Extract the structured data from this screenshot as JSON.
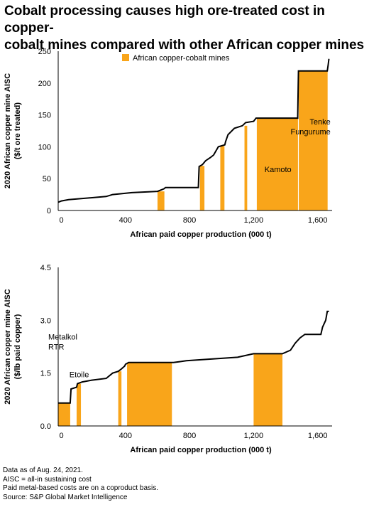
{
  "title": {
    "line1": "Cobalt processing causes high ore-treated cost in copper-",
    "line2": "cobalt mines compared with other African copper mines"
  },
  "colors": {
    "highlight": "#f9a51a",
    "curve": "#000000"
  },
  "chart_data": [
    {
      "type": "area",
      "ylabel_line1": "2020 African copper mine AISC",
      "ylabel_line2": "($/t ore treated)",
      "xlabel": "African paid copper production (000 t)",
      "xlim": [
        -20,
        1690
      ],
      "ylim": [
        0,
        250
      ],
      "xticks": [
        0,
        400,
        800,
        1200,
        1600
      ],
      "xtick_labels": [
        "0",
        "400",
        "800",
        "1,200",
        "1,600"
      ],
      "yticks": [
        0,
        50,
        100,
        150,
        200,
        250
      ],
      "ytick_labels": [
        "0",
        "50",
        "100",
        "150",
        "200",
        "250"
      ],
      "legend": {
        "label": "African copper-cobalt mines",
        "position": "top-center"
      },
      "curve": [
        [
          -20,
          13
        ],
        [
          0,
          15
        ],
        [
          45,
          17
        ],
        [
          280,
          22
        ],
        [
          320,
          25
        ],
        [
          440,
          28
        ],
        [
          600,
          30
        ],
        [
          640,
          34
        ],
        [
          650,
          36
        ],
        [
          855,
          36
        ],
        [
          860,
          69
        ],
        [
          880,
          72
        ],
        [
          900,
          78
        ],
        [
          930,
          83
        ],
        [
          950,
          87
        ],
        [
          980,
          100
        ],
        [
          1020,
          103
        ],
        [
          1025,
          108
        ],
        [
          1040,
          119
        ],
        [
          1080,
          129
        ],
        [
          1130,
          133
        ],
        [
          1150,
          138
        ],
        [
          1200,
          140
        ],
        [
          1215,
          145
        ],
        [
          1475,
          145
        ],
        [
          1480,
          219
        ],
        [
          1660,
          219
        ],
        [
          1665,
          228
        ],
        [
          1670,
          238
        ]
      ],
      "highlights": [
        {
          "x0": 600,
          "x1": 643,
          "y": 30
        },
        {
          "x0": 865,
          "x1": 893,
          "y": 70
        },
        {
          "x0": 992,
          "x1": 1018,
          "y": 101
        },
        {
          "x0": 1143,
          "x1": 1160,
          "y": 133
        },
        {
          "x0": 1220,
          "x1": 1477,
          "y": 145
        },
        {
          "x0": 1482,
          "x1": 1662,
          "y": 219
        }
      ],
      "annotations": [
        {
          "lines": [
            "Kamoto"
          ],
          "x": 1268,
          "y": 60,
          "anchor": "start"
        },
        {
          "lines": [
            "Tenke",
            "Fungurume"
          ],
          "x": 1680,
          "y": 135,
          "anchor": "end"
        }
      ]
    },
    {
      "type": "area",
      "ylabel_line1": "2020 African copper mine AISC",
      "ylabel_line2": "($/lb paid copper)",
      "xlabel": "African paid copper production (000 t)",
      "xlim": [
        -20,
        1690
      ],
      "ylim": [
        0,
        4.5
      ],
      "xticks": [
        0,
        400,
        800,
        1200,
        1600
      ],
      "xtick_labels": [
        "0",
        "400",
        "800",
        "1,200",
        "1,600"
      ],
      "yticks": [
        0,
        1.5,
        3.0,
        4.5
      ],
      "ytick_labels": [
        "0.0",
        "1.5",
        "3.0",
        "4.5"
      ],
      "curve": [
        [
          -20,
          0.65
        ],
        [
          55,
          0.65
        ],
        [
          60,
          1.05
        ],
        [
          95,
          1.1
        ],
        [
          100,
          1.2
        ],
        [
          130,
          1.25
        ],
        [
          190,
          1.3
        ],
        [
          280,
          1.35
        ],
        [
          320,
          1.5
        ],
        [
          355,
          1.55
        ],
        [
          370,
          1.6
        ],
        [
          395,
          1.7
        ],
        [
          400,
          1.75
        ],
        [
          420,
          1.8
        ],
        [
          700,
          1.8
        ],
        [
          780,
          1.85
        ],
        [
          1100,
          1.95
        ],
        [
          1200,
          2.05
        ],
        [
          1380,
          2.05
        ],
        [
          1430,
          2.15
        ],
        [
          1460,
          2.35
        ],
        [
          1490,
          2.5
        ],
        [
          1520,
          2.6
        ],
        [
          1620,
          2.6
        ],
        [
          1630,
          2.8
        ],
        [
          1650,
          3.0
        ],
        [
          1660,
          3.25
        ],
        [
          1670,
          3.25
        ]
      ],
      "highlights": [
        {
          "x0": -20,
          "x1": 55,
          "y": 0.65
        },
        {
          "x0": 95,
          "x1": 122,
          "y": 1.2
        },
        {
          "x0": 355,
          "x1": 375,
          "y": 1.55
        },
        {
          "x0": 410,
          "x1": 690,
          "y": 1.8
        },
        {
          "x0": 1200,
          "x1": 1380,
          "y": 2.05
        }
      ],
      "annotations": [
        {
          "lines": [
            "Metalkol",
            "RTR"
          ],
          "x": -60,
          "y": 2.45,
          "anchor": "start"
        },
        {
          "lines": [
            "Etoile"
          ],
          "x": 50,
          "y": 1.38,
          "anchor": "start"
        }
      ]
    }
  ],
  "footer": {
    "line1": "Data as of Aug. 24, 2021.",
    "line2": "AISC = all-in sustaining cost",
    "line3": "Paid metal-based costs are on a coproduct basis.",
    "line4": "Source: S&P Global Market Intelligence"
  }
}
